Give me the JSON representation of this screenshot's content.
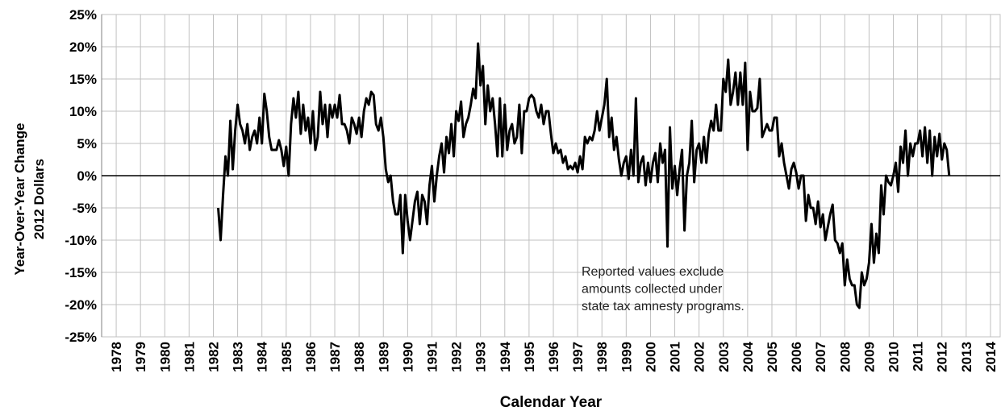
{
  "chart_data": {
    "type": "line",
    "ylabel": [
      "Year-Over-Year Change",
      "2012 Dollars"
    ],
    "xlabel": "Calendar Year",
    "annotation": [
      "Reported values exclude",
      "amounts collected under",
      "state tax amnesty programs."
    ],
    "color": "#000000",
    "grid": true,
    "xlim": [
      1977.4,
      2014.4
    ],
    "xticks": [
      1978,
      1979,
      1980,
      1981,
      1982,
      1983,
      1984,
      1985,
      1986,
      1987,
      1988,
      1989,
      1990,
      1991,
      1992,
      1993,
      1994,
      1995,
      1996,
      1997,
      1998,
      1999,
      2000,
      2001,
      2002,
      2003,
      2004,
      2005,
      2006,
      2007,
      2008,
      2009,
      2010,
      2011,
      2012,
      2013,
      2014
    ],
    "ylim": [
      -25,
      25
    ],
    "yticks": [
      {
        "value": -25,
        "label": "-25%"
      },
      {
        "value": -20,
        "label": "-20%"
      },
      {
        "value": -15,
        "label": "-15%"
      },
      {
        "value": -10,
        "label": "-10%"
      },
      {
        "value": -5,
        "label": "-5%"
      },
      {
        "value": 0,
        "label": "0%"
      },
      {
        "value": 5,
        "label": "5%"
      },
      {
        "value": 10,
        "label": "10%"
      },
      {
        "value": 15,
        "label": "15%"
      },
      {
        "value": 20,
        "label": "20%"
      },
      {
        "value": 25,
        "label": "25%"
      }
    ],
    "x": [
      1982.2,
      1982.3,
      1982.4,
      1982.5,
      1982.6,
      1982.7,
      1982.8,
      1982.9,
      1983,
      1983.1,
      1983.2,
      1983.3,
      1983.4,
      1983.5,
      1983.6,
      1983.7,
      1983.8,
      1983.9,
      1984,
      1984.1,
      1984.2,
      1984.3,
      1984.4,
      1984.5,
      1984.6,
      1984.7,
      1984.8,
      1984.9,
      1985,
      1985.1,
      1985.2,
      1985.3,
      1985.4,
      1985.5,
      1985.6,
      1985.7,
      1985.8,
      1985.9,
      1986,
      1986.1,
      1986.2,
      1986.3,
      1986.4,
      1986.5,
      1986.6,
      1986.7,
      1986.8,
      1986.9,
      1987,
      1987.1,
      1987.2,
      1987.3,
      1987.4,
      1987.5,
      1987.6,
      1987.7,
      1987.8,
      1987.9,
      1988,
      1988.1,
      1988.2,
      1988.3,
      1988.4,
      1988.5,
      1988.6,
      1988.7,
      1988.8,
      1988.9,
      1989,
      1989.1,
      1989.2,
      1989.3,
      1989.4,
      1989.5,
      1989.6,
      1989.7,
      1989.8,
      1989.9,
      1990,
      1990.1,
      1990.2,
      1990.3,
      1990.4,
      1990.5,
      1990.6,
      1990.7,
      1990.8,
      1990.9,
      1991,
      1991.1,
      1991.2,
      1991.3,
      1991.4,
      1991.5,
      1991.6,
      1991.7,
      1991.8,
      1991.9,
      1992,
      1992.1,
      1992.2,
      1992.3,
      1992.4,
      1992.5,
      1992.6,
      1992.7,
      1992.8,
      1992.9,
      1993,
      1993.1,
      1993.2,
      1993.3,
      1993.4,
      1993.5,
      1993.6,
      1993.7,
      1993.8,
      1993.9,
      1994,
      1994.1,
      1994.2,
      1994.3,
      1994.4,
      1994.5,
      1994.6,
      1994.7,
      1994.8,
      1994.9,
      1995,
      1995.1,
      1995.2,
      1995.3,
      1995.4,
      1995.5,
      1995.6,
      1995.7,
      1995.8,
      1995.9,
      1996,
      1996.1,
      1996.2,
      1996.3,
      1996.4,
      1996.5,
      1996.6,
      1996.7,
      1996.8,
      1996.9,
      1997,
      1997.1,
      1997.2,
      1997.3,
      1997.4,
      1997.5,
      1997.6,
      1997.7,
      1997.8,
      1997.9,
      1998,
      1998.1,
      1998.2,
      1998.3,
      1998.4,
      1998.5,
      1998.6,
      1998.7,
      1998.8,
      1998.9,
      1999,
      1999.1,
      1999.2,
      1999.3,
      1999.4,
      1999.5,
      1999.6,
      1999.7,
      1999.8,
      1999.9,
      2000,
      2000.1,
      2000.2,
      2000.3,
      2000.4,
      2000.5,
      2000.6,
      2000.7,
      2000.8,
      2000.9,
      2001,
      2001.1,
      2001.2,
      2001.3,
      2001.4,
      2001.5,
      2001.6,
      2001.7,
      2001.8,
      2001.9,
      2002,
      2002.1,
      2002.2,
      2002.3,
      2002.4,
      2002.5,
      2002.6,
      2002.7,
      2002.8,
      2002.9,
      2003,
      2003.1,
      2003.2,
      2003.3,
      2003.4,
      2003.5,
      2003.6,
      2003.7,
      2003.8,
      2003.9,
      2004,
      2004.1,
      2004.2,
      2004.3,
      2004.4,
      2004.5,
      2004.6,
      2004.7,
      2004.8,
      2004.9,
      2005,
      2005.1,
      2005.2,
      2005.3,
      2005.4,
      2005.5,
      2005.6,
      2005.7,
      2005.8,
      2005.9,
      2006,
      2006.1,
      2006.2,
      2006.3,
      2006.4,
      2006.5,
      2006.6,
      2006.7,
      2006.8,
      2006.9,
      2007,
      2007.1,
      2007.2,
      2007.3,
      2007.4,
      2007.5,
      2007.6,
      2007.7,
      2007.8,
      2007.9,
      2008,
      2008.1,
      2008.2,
      2008.3,
      2008.4,
      2008.5,
      2008.6,
      2008.7,
      2008.8,
      2008.9,
      2009,
      2009.1,
      2009.2,
      2009.3,
      2009.4,
      2009.5,
      2009.6,
      2009.7,
      2009.8,
      2009.9,
      2010,
      2010.1,
      2010.2,
      2010.3,
      2010.4,
      2010.5,
      2010.6,
      2010.7,
      2010.8,
      2010.9,
      2011,
      2011.1,
      2011.2,
      2011.3,
      2011.4,
      2011.5,
      2011.6,
      2011.7,
      2011.8,
      2011.9,
      2012,
      2012.1,
      2012.2,
      2012.3
    ],
    "values": [
      -5,
      -10,
      -3,
      3,
      0,
      8.5,
      1,
      7,
      11,
      8,
      7,
      5,
      8,
      4,
      6,
      7,
      5,
      9,
      5,
      12.7,
      10,
      6,
      4,
      4,
      4,
      5.5,
      4,
      1.5,
      4.5,
      0,
      8,
      12,
      9,
      13,
      6.5,
      11,
      7,
      9,
      5,
      10,
      4,
      6,
      13,
      8,
      11,
      6,
      11,
      9,
      11,
      9,
      12.5,
      8,
      8,
      7,
      5,
      9,
      8,
      6.5,
      9,
      6,
      10,
      12,
      11,
      13,
      12.5,
      8,
      7,
      9,
      6,
      1,
      -1,
      0,
      -4,
      -6,
      -6,
      -3,
      -12,
      -3,
      -7,
      -10,
      -7,
      -4,
      -2.5,
      -7.5,
      -3,
      -4,
      -7.5,
      -1.5,
      1.5,
      -4,
      0,
      3,
      5,
      0.5,
      6,
      3.5,
      8,
      3,
      10,
      8.5,
      11.5,
      6,
      8,
      9,
      11,
      13.5,
      12,
      20.5,
      14,
      17,
      8,
      14,
      10,
      12,
      8,
      3,
      12,
      3,
      11,
      4,
      7,
      8,
      5,
      6,
      11,
      3.5,
      10,
      10,
      12,
      12.5,
      12,
      10,
      9,
      11,
      8,
      10,
      10,
      6.5,
      3.5,
      5,
      3.5,
      4,
      2,
      3,
      1,
      1.5,
      1,
      2,
      0.5,
      3,
      1,
      6,
      5,
      6,
      5.5,
      7,
      10,
      7,
      9,
      11,
      15,
      6,
      9,
      4,
      6,
      2.5,
      0,
      2,
      3,
      -0.5,
      4,
      0,
      12,
      -1,
      2,
      3,
      -1.5,
      2,
      -1,
      2,
      3.5,
      -1,
      5,
      2,
      4,
      -11,
      7.5,
      -2,
      1.5,
      -3,
      1,
      4,
      -8.5,
      0,
      2,
      8.5,
      -1,
      4,
      5,
      2,
      6,
      2,
      6.5,
      8.5,
      7,
      11,
      7,
      7,
      15,
      13,
      18,
      11,
      13,
      16,
      11,
      16,
      11,
      17.5,
      4,
      13,
      10,
      10,
      10.5,
      15,
      6,
      7,
      8,
      7,
      7,
      9,
      9,
      3,
      5,
      2,
      0,
      -2,
      1,
      2,
      0.5,
      -2,
      0,
      0,
      -7,
      -3,
      -5,
      -5,
      -7.5,
      -4,
      -8,
      -6,
      -10,
      -8,
      -6,
      -4.5,
      -10,
      -10.5,
      -12,
      -10.5,
      -17,
      -13,
      -16,
      -17,
      -17,
      -20,
      -20.5,
      -15,
      -17,
      -16,
      -13.5,
      -7.5,
      -13.5,
      -9,
      -12,
      -1.5,
      -6,
      0,
      -1,
      -1.5,
      0,
      2,
      -2.5,
      4.5,
      2,
      7,
      0,
      5,
      3,
      5,
      5,
      7,
      3,
      7.5,
      2,
      7,
      0,
      6,
      3,
      6.5,
      2.5,
      5,
      4,
      0
    ]
  }
}
